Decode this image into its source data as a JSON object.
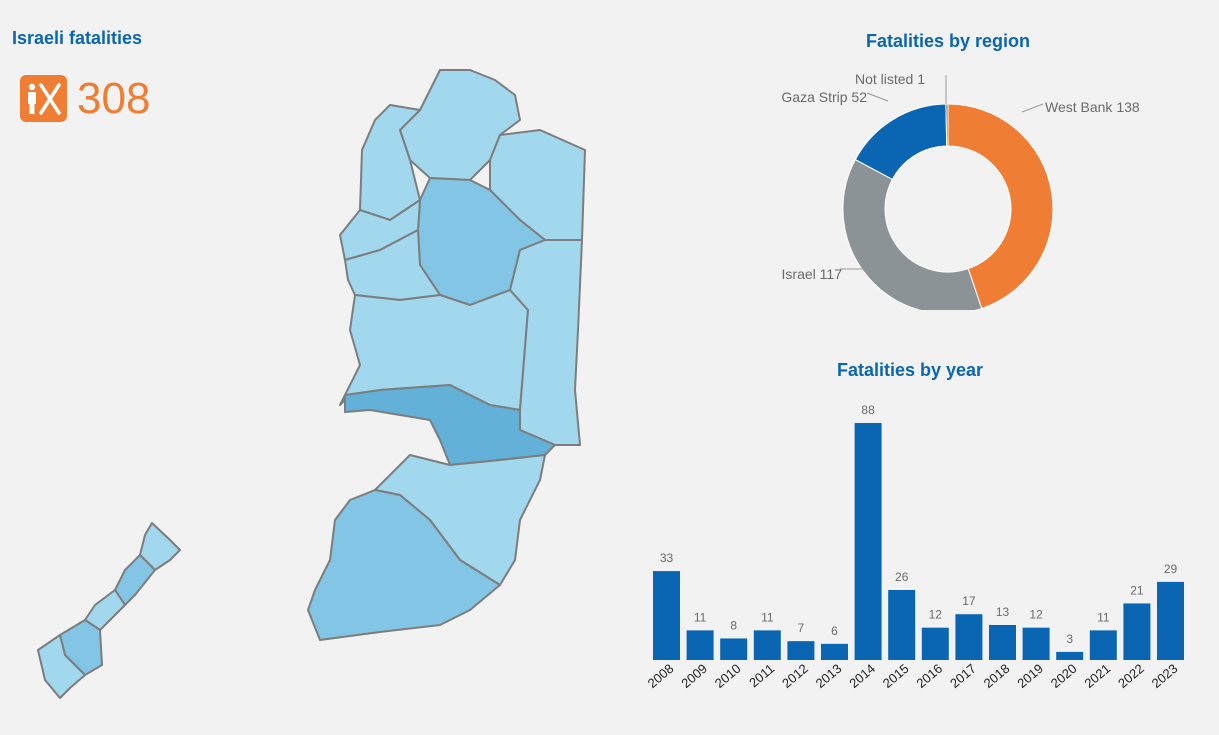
{
  "header": {
    "title": "Israeli fatalities",
    "total": "308",
    "icon": "person-x-icon"
  },
  "colors": {
    "accent": "#f07d34",
    "blue": "#0a66b2",
    "gray": "#8c9396",
    "map_light": "#a1d8ee",
    "map_mid": "#82c5e5",
    "map_dark": "#63b0d8",
    "map_border": "#7d7d7d"
  },
  "chart_data": [
    {
      "type": "pie",
      "title": "Fatalities by region",
      "slices": [
        {
          "label": "West Bank",
          "value": 138,
          "text": "West Bank 138",
          "color": "#f07d34"
        },
        {
          "label": "Israel",
          "value": 117,
          "text": "Israel 117",
          "color": "#8c9396"
        },
        {
          "label": "Gaza Strip",
          "value": 52,
          "text": "Gaza Strip 52",
          "color": "#0a66b2"
        },
        {
          "label": "Not listed",
          "value": 1,
          "text": "Not listed 1",
          "color": "#6b6b6b"
        }
      ]
    },
    {
      "type": "bar",
      "title": "Fatalities by year",
      "categories": [
        "2008",
        "2009",
        "2010",
        "2011",
        "2012",
        "2013",
        "2014",
        "2015",
        "2016",
        "2017",
        "2018",
        "2019",
        "2020",
        "2021",
        "2022",
        "2023"
      ],
      "values": [
        33,
        11,
        8,
        11,
        7,
        6,
        88,
        26,
        12,
        17,
        13,
        12,
        3,
        11,
        21,
        29
      ],
      "color": "#0a66b2"
    }
  ]
}
